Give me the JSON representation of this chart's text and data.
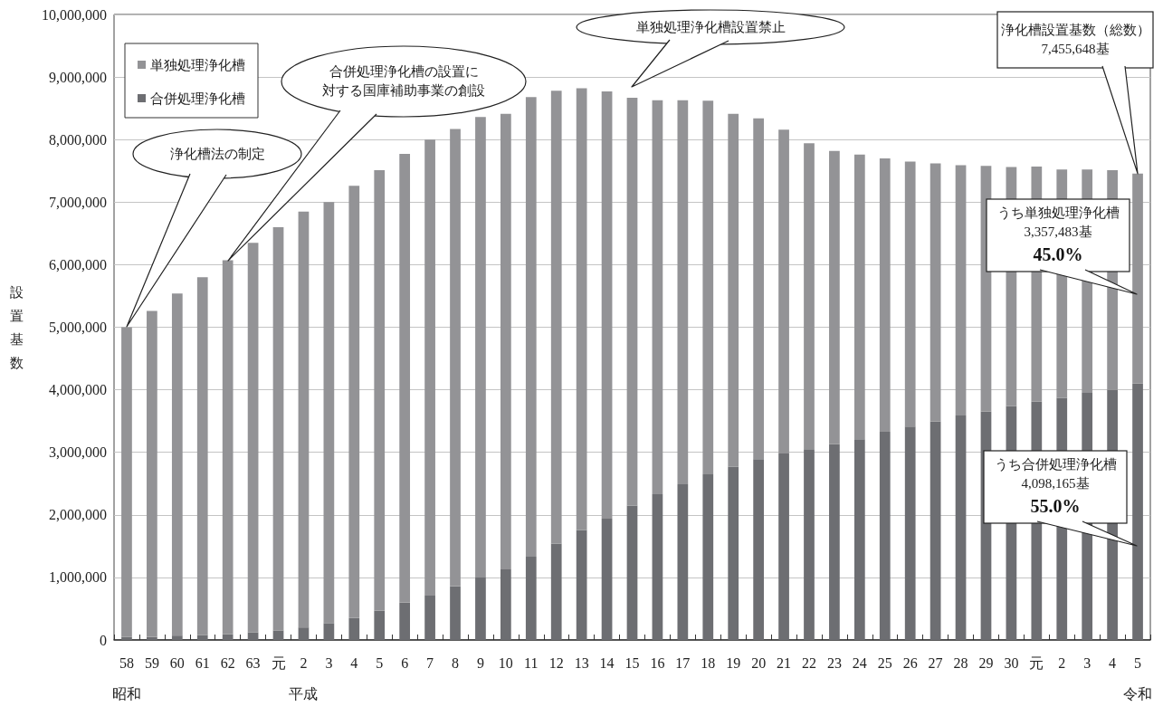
{
  "chart_data": {
    "type": "bar",
    "stacked": true,
    "categories": [
      "58\n昭和",
      "59",
      "60",
      "61",
      "62",
      "63",
      "元",
      "2\n平成",
      "3",
      "4",
      "5",
      "6",
      "7",
      "8",
      "9",
      "10",
      "11",
      "12",
      "13",
      "14",
      "15",
      "16",
      "17",
      "18",
      "19",
      "20",
      "21",
      "22",
      "23",
      "24",
      "25",
      "26",
      "27",
      "28",
      "29",
      "30",
      "元",
      "2",
      "3",
      "4",
      "5\n令和"
    ],
    "ylabel": "設置基数",
    "series": [
      {
        "name": "合併処理浄化槽",
        "color": "#6d6e72",
        "values": [
          50000,
          50000,
          70000,
          80000,
          90000,
          120000,
          150000,
          200000,
          270000,
          350000,
          470000,
          600000,
          710000,
          860000,
          1000000,
          1130000,
          1330000,
          1540000,
          1760000,
          1940000,
          2150000,
          2330000,
          2490000,
          2650000,
          2770000,
          2890000,
          2980000,
          3050000,
          3130000,
          3210000,
          3330000,
          3410000,
          3490000,
          3590000,
          3650000,
          3740000,
          3810000,
          3870000,
          3950000,
          4000000,
          4098165
        ]
      },
      {
        "name": "単独処理浄化槽",
        "color": "#939396",
        "values": [
          4950000,
          5210000,
          5470000,
          5720000,
          5980000,
          6230000,
          6450000,
          6650000,
          6730000,
          6910000,
          7040000,
          7170000,
          7290000,
          7310000,
          7360000,
          7280000,
          7350000,
          7240000,
          7060000,
          6830000,
          6520000,
          6300000,
          6140000,
          5970000,
          5640000,
          5450000,
          5180000,
          4890000,
          4690000,
          4550000,
          4370000,
          4240000,
          4130000,
          4000000,
          3930000,
          3820000,
          3760000,
          3650000,
          3570000,
          3510000,
          3357483
        ]
      }
    ],
    "ylim": [
      0,
      10000000
    ],
    "yticks": [
      0,
      {
        "value": 1000000,
        "label": "1,000,000"
      },
      {
        "value": 2000000,
        "label": "2,000,000"
      },
      {
        "value": 3000000,
        "label": "3,000,000"
      },
      {
        "value": 4000000,
        "label": "4,000,000"
      },
      {
        "value": 5000000,
        "label": "5,000,000"
      },
      {
        "value": 6000000,
        "label": "6,000,000"
      },
      {
        "value": 7000000,
        "label": "7,000,000"
      },
      {
        "value": 8000000,
        "label": "8,000,000"
      },
      {
        "value": 9000000,
        "label": "9,000,000"
      },
      {
        "value": 10000000,
        "label": "10,000,000"
      }
    ],
    "grid": "y",
    "legend": "top left",
    "annotations": [
      "浄化槽法の制定",
      "合併処理浄化槽の設置に対する国庫補助事業の創設",
      "単独処理浄化槽設置禁止",
      {
        "text": "浄化槽設置基数（総数）\n7,455,648基",
        "x": "5\n令和",
        "y": 7455648
      },
      "うち単独処理浄化槽\n3,357,483基\n45.0%",
      "うち合併処理浄化槽\n4,098,165基\n55.0%"
    ]
  }
}
